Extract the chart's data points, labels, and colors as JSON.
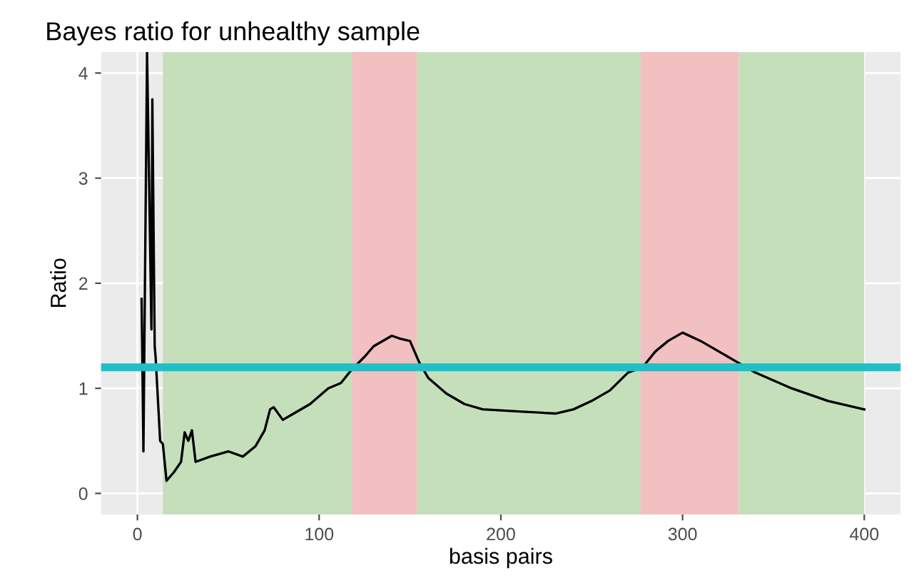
{
  "chart_data": {
    "type": "line",
    "title": "Bayes ratio for unhealthy sample",
    "xlabel": "basis pairs",
    "ylabel": "Ratio",
    "series": [
      {
        "color": "#000000",
        "x": [
          2.3,
          3.3,
          5.3,
          7.7,
          8.2,
          9.5,
          10,
          12.5,
          14,
          16,
          20,
          24,
          26,
          28,
          30,
          32,
          40,
          50,
          58,
          65,
          70,
          73,
          75,
          80,
          85,
          95,
          105,
          112,
          118,
          125,
          130,
          140,
          145,
          150,
          155,
          160,
          170,
          180,
          190,
          210,
          230,
          240,
          250,
          260,
          270,
          278,
          285,
          292,
          300,
          310,
          320,
          330,
          340,
          360,
          380,
          400
        ],
        "values": [
          1.85,
          0.4,
          4.2,
          1.56,
          3.75,
          1.4,
          1.3,
          0.5,
          0.47,
          0.12,
          0.2,
          0.3,
          0.58,
          0.5,
          0.6,
          0.3,
          0.35,
          0.4,
          0.35,
          0.45,
          0.6,
          0.8,
          0.82,
          0.7,
          0.75,
          0.85,
          1.0,
          1.05,
          1.18,
          1.3,
          1.4,
          1.5,
          1.47,
          1.45,
          1.25,
          1.1,
          0.95,
          0.85,
          0.8,
          0.78,
          0.76,
          0.8,
          0.88,
          0.98,
          1.15,
          1.2,
          1.35,
          1.45,
          1.53,
          1.45,
          1.35,
          1.25,
          1.15,
          1.0,
          0.88,
          0.8
        ]
      }
    ],
    "bands": [
      {
        "axis": "x",
        "from": 14,
        "to": 118,
        "color": "#c6dfbb"
      },
      {
        "axis": "x",
        "from": 118,
        "to": 154,
        "color": "#f2c0c0"
      },
      {
        "axis": "x",
        "from": 154,
        "to": 277,
        "color": "#c6dfbb"
      },
      {
        "axis": "x",
        "from": 277,
        "to": 331,
        "color": "#f2c0c0"
      },
      {
        "axis": "x",
        "from": 331,
        "to": 400,
        "color": "#c6dfbb"
      }
    ],
    "ref_lines": [
      {
        "axis": "y",
        "value": 1.2,
        "color": "#1fbfc8"
      }
    ],
    "xlim": [
      -20,
      420
    ],
    "ylim": [
      -0.2,
      4.2
    ],
    "xticks": [
      0,
      100,
      200,
      300,
      400
    ],
    "yticks": [
      0,
      1,
      2,
      3,
      4
    ],
    "grid": true,
    "legend": false
  }
}
